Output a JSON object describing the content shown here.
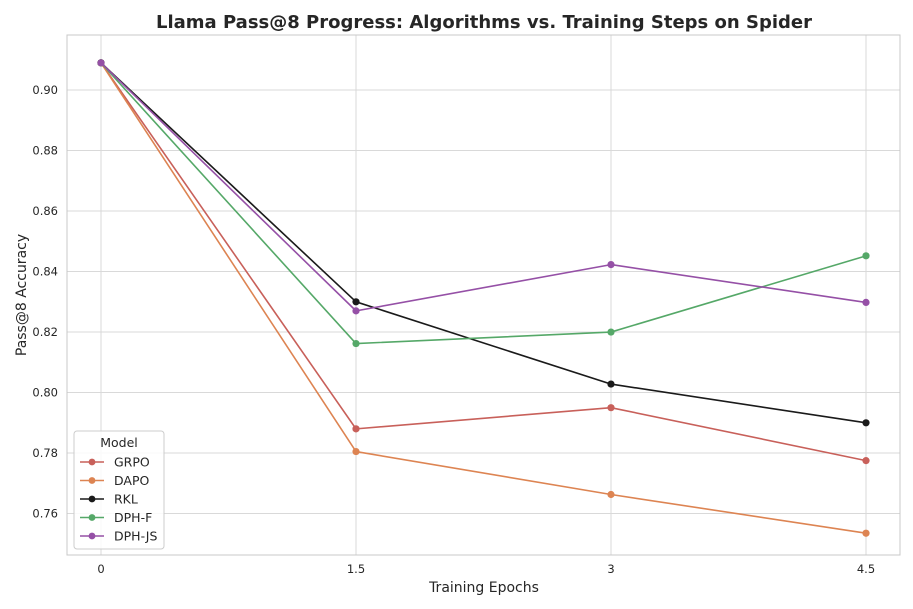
{
  "chart_data": {
    "type": "line",
    "title": "Llama Pass@8 Progress: Algorithms vs. Training Steps on Spider",
    "xlabel": "Training Epochs",
    "ylabel": "Pass@8 Accuracy",
    "x": [
      0,
      1.5,
      3,
      4.5
    ],
    "x_tick_labels": [
      "0",
      "1.5",
      "3",
      "4.5"
    ],
    "xlim": [
      -0.2,
      4.7
    ],
    "ylim": [
      0.7463,
      0.9182
    ],
    "y_ticks": [
      0.76,
      0.78,
      0.8,
      0.82,
      0.84,
      0.86,
      0.88,
      0.9
    ],
    "y_tick_labels": [
      "0.76",
      "0.78",
      "0.80",
      "0.82",
      "0.84",
      "0.86",
      "0.88",
      "0.90"
    ],
    "grid": true,
    "legend": {
      "title": "Model",
      "position": "lower-left"
    },
    "series": [
      {
        "name": "GRPO",
        "color": "#c8605a",
        "values": [
          0.909,
          0.788,
          0.795,
          0.7775
        ]
      },
      {
        "name": "DAPO",
        "color": "#dd8452",
        "values": [
          0.909,
          0.7805,
          0.7663,
          0.7535
        ]
      },
      {
        "name": "RKL",
        "color": "#1a1a1a",
        "values": [
          0.909,
          0.83,
          0.8028,
          0.79
        ]
      },
      {
        "name": "DPH-F",
        "color": "#55a868",
        "values": [
          0.909,
          0.8162,
          0.82,
          0.8452
        ]
      },
      {
        "name": "DPH-JS",
        "color": "#9550a6",
        "values": [
          0.909,
          0.827,
          0.8423,
          0.8298
        ]
      }
    ]
  }
}
